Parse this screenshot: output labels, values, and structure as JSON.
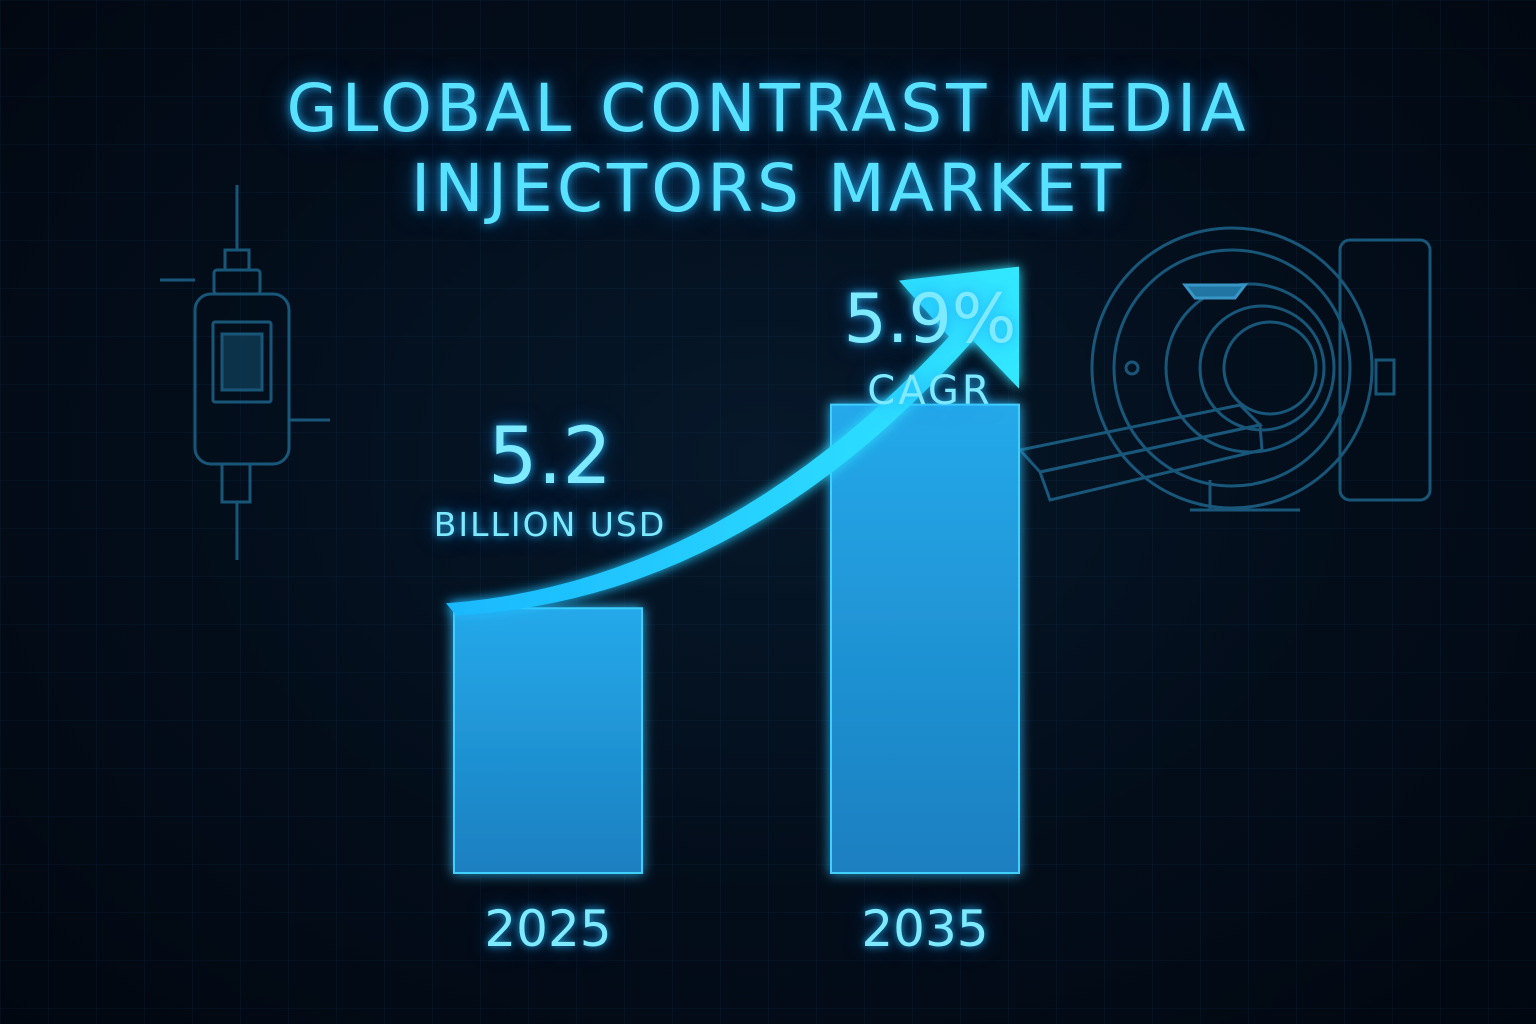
{
  "chart_data": {
    "type": "bar",
    "title": "GLOBAL CONTRAST MEDIA INJECTORS MARKET",
    "title_lines": [
      "GLOBAL CONTRAST MEDIA",
      "INJECTORS MARKET"
    ],
    "categories": [
      "2025",
      "2035"
    ],
    "series": [
      {
        "values": [
          5.2,
          9.2
        ]
      }
    ],
    "annotations": {
      "start_value": "5.2",
      "start_unit": "BILLION USD",
      "growth_value": "5.9%",
      "growth_label": "CAGR"
    },
    "trend_arrow": true,
    "ylim": [
      0,
      11
    ],
    "grid": false,
    "legend": "none",
    "xlabel": "",
    "ylabel": ""
  },
  "colors": {
    "accent": "#2ec8ff",
    "text": "#7eeaff",
    "background": "#020b16"
  },
  "decorations": {
    "left_icon": "syringe-injector-icon",
    "right_icon": "ct-scanner-icon"
  }
}
